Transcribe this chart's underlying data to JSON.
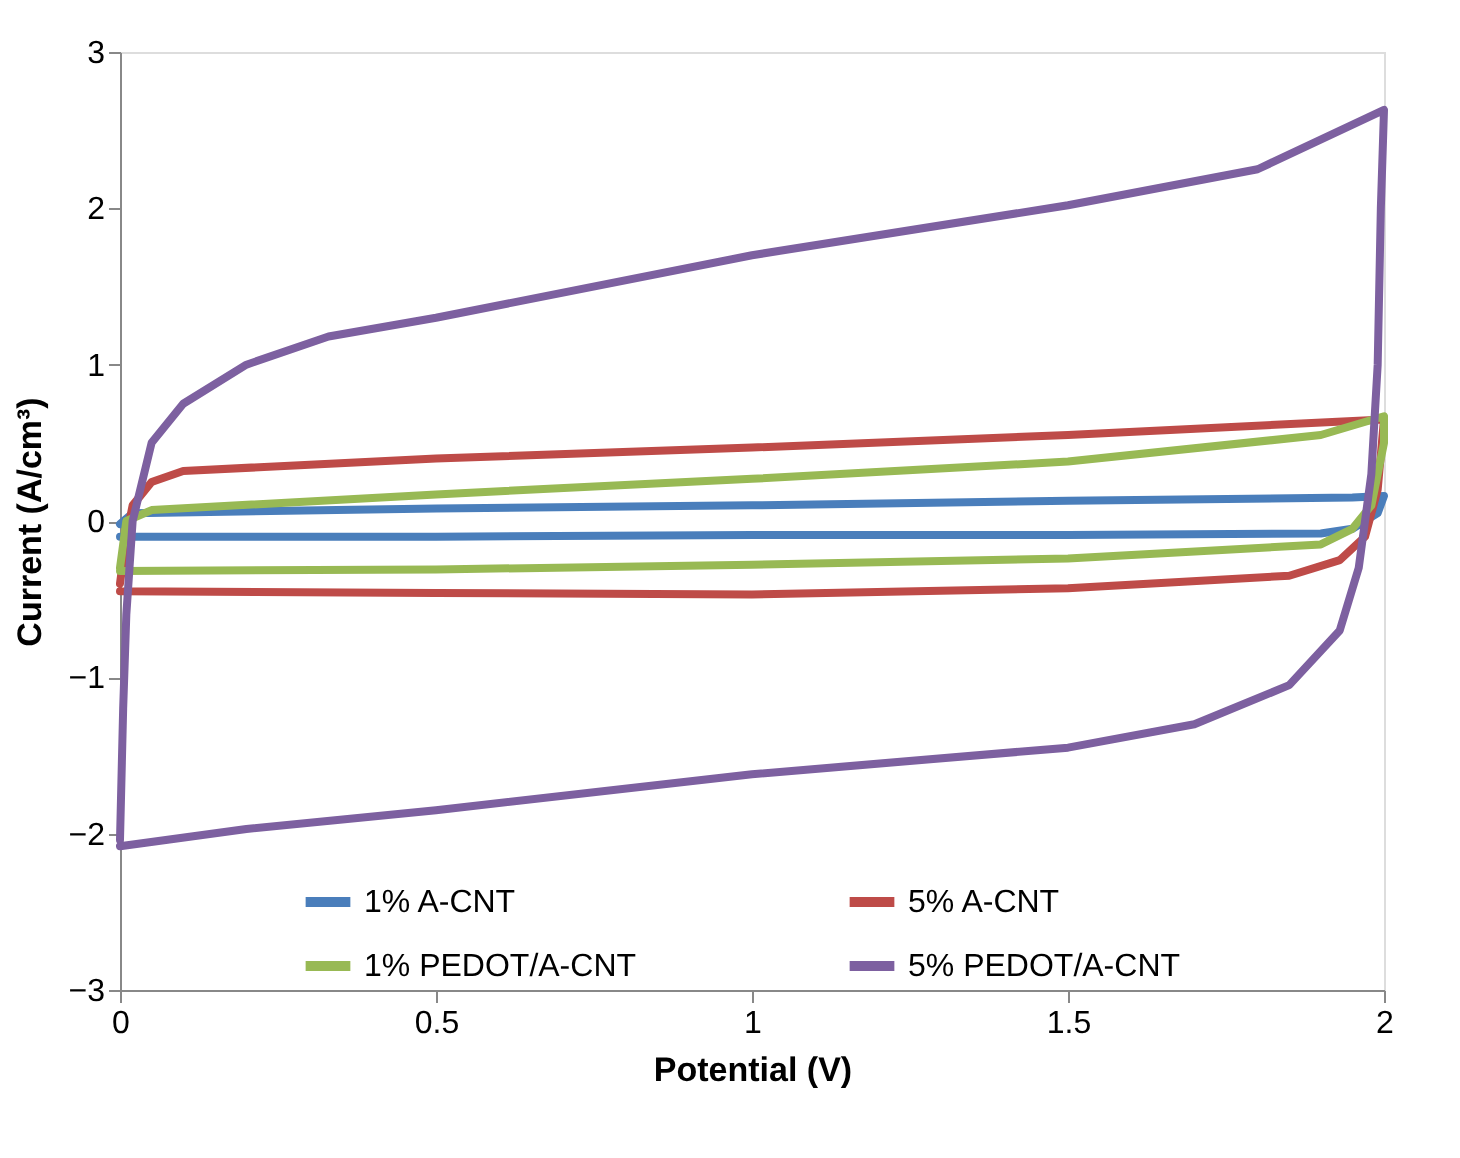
{
  "chart_data": {
    "type": "line",
    "xlabel": "Potential (V)",
    "ylabel": "Current (A/cm³)",
    "xlim": [
      0,
      2
    ],
    "xticks": [
      0,
      0.5,
      1,
      1.5,
      2
    ],
    "ylim": [
      -3,
      3
    ],
    "yticks": [
      -3,
      -2,
      -1,
      0,
      1,
      2,
      3
    ],
    "grid": false,
    "legend": "bottom",
    "marker": "none",
    "line_style": "solid",
    "series": [
      {
        "name": "1% A-CNT",
        "color": "#4a7ebb",
        "x": [
          0,
          0.02,
          0.5,
          1,
          1.5,
          1.95,
          2,
          1.99,
          1.95,
          1.9,
          1.5,
          1,
          0.5,
          0.02,
          0
        ],
        "values": [
          -0.02,
          0.05,
          0.08,
          0.1,
          0.13,
          0.15,
          0.16,
          0.05,
          -0.05,
          -0.08,
          -0.09,
          -0.09,
          -0.1,
          -0.1,
          -0.1
        ]
      },
      {
        "name": "5% A-CNT",
        "color": "#be4b48",
        "x": [
          0,
          0.01,
          0.02,
          0.05,
          0.1,
          0.5,
          1,
          1.5,
          2,
          1.99,
          1.97,
          1.93,
          1.85,
          1.5,
          1,
          0.5,
          0
        ],
        "values": [
          -0.4,
          -0.1,
          0.1,
          0.25,
          0.32,
          0.4,
          0.47,
          0.55,
          0.65,
          0.2,
          -0.1,
          -0.25,
          -0.35,
          -0.43,
          -0.47,
          -0.46,
          -0.45
        ]
      },
      {
        "name": "1% PEDOT/A-CNT",
        "color": "#98b954",
        "x": [
          0,
          0.01,
          0.05,
          0.5,
          1,
          1.5,
          1.9,
          2,
          2,
          1.98,
          1.95,
          1.9,
          1.5,
          1,
          0.5,
          0
        ],
        "values": [
          -0.3,
          0,
          0.07,
          0.17,
          0.27,
          0.38,
          0.55,
          0.67,
          0.5,
          0.1,
          -0.05,
          -0.15,
          -0.24,
          -0.28,
          -0.31,
          -0.32
        ]
      },
      {
        "name": "5% PEDOT/A-CNT",
        "color": "#7d60a0",
        "x": [
          0,
          0.005,
          0.01,
          0.02,
          0.05,
          0.1,
          0.2,
          0.33,
          0.5,
          1,
          1.5,
          1.8,
          2,
          1.995,
          1.99,
          1.98,
          1.96,
          1.93,
          1.85,
          1.7,
          1.5,
          1,
          0.5,
          0.2,
          0
        ],
        "values": [
          -2.04,
          -1.2,
          -0.6,
          0,
          0.5,
          0.75,
          1.0,
          1.18,
          1.3,
          1.7,
          2.02,
          2.25,
          2.63,
          2.0,
          1.0,
          0.3,
          -0.3,
          -0.7,
          -1.05,
          -1.3,
          -1.45,
          -1.62,
          -1.85,
          -1.97,
          -2.08
        ]
      }
    ]
  }
}
